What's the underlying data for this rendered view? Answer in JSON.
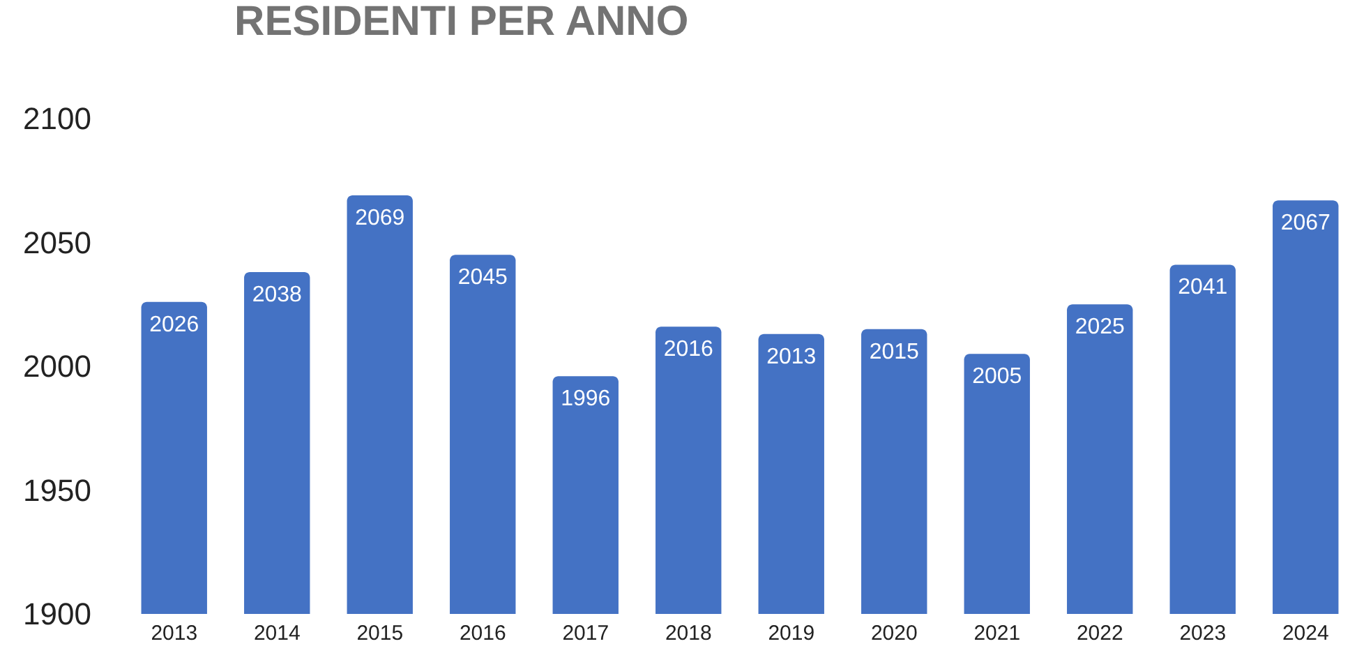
{
  "chart_data": {
    "type": "bar",
    "title": "RESIDENTI PER ANNO",
    "categories": [
      "2013",
      "2014",
      "2015",
      "2016",
      "2017",
      "2018",
      "2019",
      "2020",
      "2021",
      "2022",
      "2023",
      "2024"
    ],
    "values": [
      2026,
      2038,
      2069,
      2045,
      1996,
      2016,
      2013,
      2015,
      2005,
      2025,
      2041,
      2067
    ],
    "color": "#4472c4",
    "ylim": [
      1900,
      2100
    ],
    "yticks": [
      1900,
      1950,
      2000,
      2050,
      2100
    ],
    "data_labels": true,
    "grid": false
  }
}
